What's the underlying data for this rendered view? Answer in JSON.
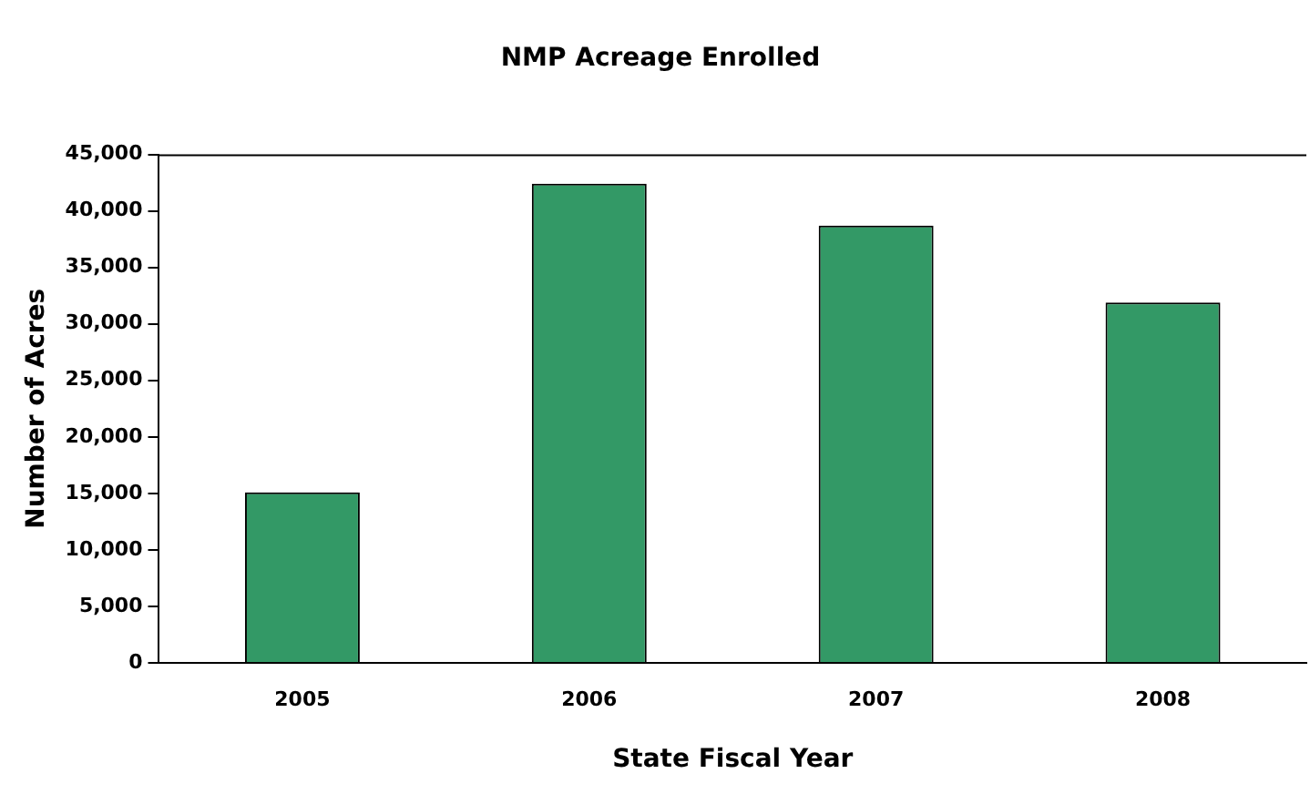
{
  "chart_data": {
    "type": "bar",
    "title": "NMP Acreage Enrolled",
    "xlabel": "State Fiscal Year",
    "ylabel": "Number of Acres",
    "categories": [
      "2005",
      "2006",
      "2007",
      "2008"
    ],
    "values": [
      15100,
      42400,
      38700,
      31900
    ],
    "color": "#339966",
    "ylim": [
      0,
      45000
    ],
    "yticks": [
      0,
      {
        "value": 5000,
        "label": "5,000"
      },
      {
        "value": 10000,
        "label": "10,000"
      },
      {
        "value": 15000,
        "label": "15,000"
      },
      {
        "value": 20000,
        "label": "20,000"
      },
      {
        "value": 25000,
        "label": "25,000"
      },
      {
        "value": 30000,
        "label": "30,000"
      },
      {
        "value": 35000,
        "label": "35,000"
      },
      {
        "value": 40000,
        "label": "40,000"
      },
      {
        "value": 45000,
        "label": "45,000"
      }
    ],
    "grid": false,
    "legend": false
  }
}
